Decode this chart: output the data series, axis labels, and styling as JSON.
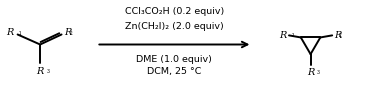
{
  "background_color": "#ffffff",
  "line_color": "#000000",
  "line_width": 1.4,
  "text_color": "#000000",
  "reagents_line1": "CCl₃CO₂H (0.2 equiv)",
  "reagents_line2": "Zn(CH₂I)₂ (2.0 equiv)",
  "reagents_line3": "DME (1.0 equiv)",
  "reagents_line4": "DCM, 25 °C",
  "font_size_reagents": 6.8,
  "font_size_labels": 7.0,
  "figsize": [
    3.77,
    0.89
  ],
  "dpi": 100
}
